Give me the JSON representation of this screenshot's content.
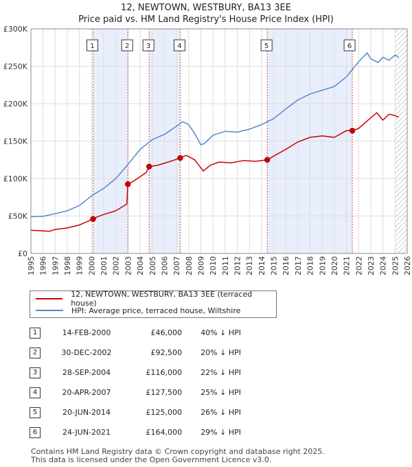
{
  "chart_title": "12, NEWTOWN, WESTBURY, BA13 3EE",
  "chart_subtitle": "Price paid vs. HM Land Registry's House Price Index (HPI)",
  "colors": {
    "property": "#cc0000",
    "hpi": "#5588cc",
    "shade": "#e8eefb",
    "grid": "#dddddd"
  },
  "chart_data": {
    "type": "line",
    "title": "12, NEWTOWN, WESTBURY, BA13 3EE",
    "subtitle": "Price paid vs. HM Land Registry's House Price Index (HPI)",
    "xlim": [
      1995,
      2026
    ],
    "ylim": [
      0,
      300000
    ],
    "x_ticks": [
      1995,
      1996,
      1997,
      1998,
      1999,
      2000,
      2001,
      2002,
      2003,
      2004,
      2005,
      2006,
      2007,
      2008,
      2009,
      2010,
      2011,
      2012,
      2013,
      2014,
      2015,
      2016,
      2017,
      2018,
      2019,
      2020,
      2021,
      2022,
      2023,
      2024,
      2025,
      2026
    ],
    "y_ticks": [
      0,
      50000,
      100000,
      150000,
      200000,
      250000,
      300000
    ],
    "y_tick_labels": [
      "£0",
      "£50K",
      "£100K",
      "£150K",
      "£200K",
      "£250K",
      "£300K"
    ],
    "series": [
      {
        "name": "12, NEWTOWN, WESTBURY, BA13 3EE (terraced house)",
        "x": [
          1995,
          1996,
          1996.5,
          1997,
          1998,
          1999,
          2000.12,
          2000.5,
          2001,
          2002,
          2002.9,
          2002.99,
          2003.5,
          2004.5,
          2004.74,
          2005.5,
          2006.5,
          2007.3,
          2007.8,
          2008.5,
          2009.2,
          2009.8,
          2010.5,
          2011.5,
          2012.5,
          2013.5,
          2014.47,
          2015,
          2016,
          2017,
          2018,
          2019,
          2020,
          2021,
          2021.48,
          2022,
          2022.7,
          2023.5,
          2024,
          2024.5,
          2025,
          2025.3
        ],
        "values": [
          31000,
          30000,
          29500,
          32000,
          34000,
          38000,
          46000,
          49000,
          52000,
          57000,
          66000,
          92500,
          97000,
          108000,
          116000,
          118000,
          123000,
          127500,
          131000,
          125000,
          110000,
          118000,
          122000,
          121000,
          124000,
          123000,
          125000,
          130000,
          139000,
          149000,
          155000,
          157000,
          155000,
          164000,
          164000,
          167000,
          177000,
          188000,
          178000,
          186000,
          184000,
          182000
        ],
        "color": "#cc0000"
      },
      {
        "name": "HPI: Average price, terraced house, Wiltshire",
        "x": [
          1995,
          1996,
          1997,
          1998,
          1999,
          2000,
          2001,
          2002,
          2003,
          2004,
          2005,
          2006,
          2007,
          2007.5,
          2008,
          2008.5,
          2009,
          2009.3,
          2010,
          2011,
          2012,
          2013,
          2014,
          2015,
          2016,
          2017,
          2018,
          2019,
          2020,
          2021,
          2022,
          2022.7,
          2023,
          2023.6,
          2024,
          2024.5,
          2025,
          2025.3
        ],
        "values": [
          49000,
          49500,
          53000,
          57000,
          64000,
          77000,
          87000,
          100000,
          119000,
          139000,
          152000,
          159000,
          170000,
          176000,
          172000,
          160000,
          145000,
          147000,
          158000,
          163000,
          162000,
          166000,
          172000,
          180000,
          193000,
          205000,
          213000,
          218000,
          223000,
          236000,
          256000,
          268000,
          260000,
          255000,
          262000,
          258000,
          265000,
          262000
        ],
        "color": "#5588cc"
      }
    ],
    "sales": [
      {
        "n": "1",
        "x": 2000.12,
        "value": 46000
      },
      {
        "n": "2",
        "x": 2002.99,
        "value": 92500
      },
      {
        "n": "3",
        "x": 2004.74,
        "value": 116000
      },
      {
        "n": "4",
        "x": 2007.3,
        "value": 127500
      },
      {
        "n": "5",
        "x": 2014.47,
        "value": 125000
      },
      {
        "n": "6",
        "x": 2021.48,
        "value": 164000
      }
    ],
    "shaded_ranges": [
      [
        2000.12,
        2002.99
      ],
      [
        2004.74,
        2007.3
      ],
      [
        2014.47,
        2021.48
      ]
    ],
    "hatched_from": 2025.0
  },
  "legend": {
    "property_label": "12, NEWTOWN, WESTBURY, BA13 3EE (terraced house)",
    "hpi_label": "HPI: Average price, terraced house, Wiltshire"
  },
  "sales_table": [
    {
      "n": "1",
      "date": "14-FEB-2000",
      "price": "£46,000",
      "hpi": "40% ↓ HPI"
    },
    {
      "n": "2",
      "date": "30-DEC-2002",
      "price": "£92,500",
      "hpi": "20% ↓ HPI"
    },
    {
      "n": "3",
      "date": "28-SEP-2004",
      "price": "£116,000",
      "hpi": "22% ↓ HPI"
    },
    {
      "n": "4",
      "date": "20-APR-2007",
      "price": "£127,500",
      "hpi": "25% ↓ HPI"
    },
    {
      "n": "5",
      "date": "20-JUN-2014",
      "price": "£125,000",
      "hpi": "26% ↓ HPI"
    },
    {
      "n": "6",
      "date": "24-JUN-2021",
      "price": "£164,000",
      "hpi": "29% ↓ HPI"
    }
  ],
  "footer": {
    "line1": "Contains HM Land Registry data © Crown copyright and database right 2025.",
    "line2": "This data is licensed under the Open Government Licence v3.0."
  }
}
